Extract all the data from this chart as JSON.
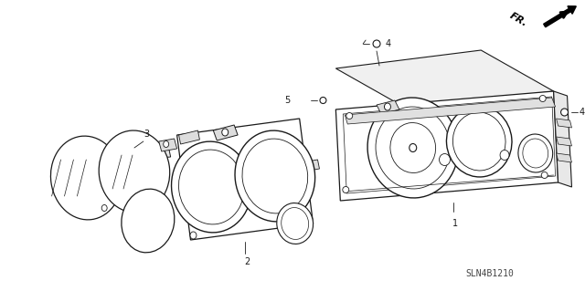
{
  "bg_color": "#ffffff",
  "line_color": "#1a1a1a",
  "watermark": "SLN4B1210",
  "fr_label": "FR.",
  "figsize": [
    6.4,
    3.19
  ],
  "dpi": 100
}
